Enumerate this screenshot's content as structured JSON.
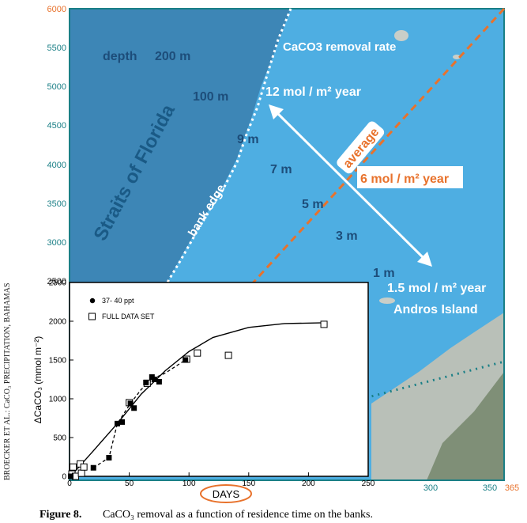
{
  "colors": {
    "ocean_deep": "#3f86b4",
    "ocean_bank": "#4faee0",
    "teal_axis": "#1a7f86",
    "orange": "#e8722c",
    "white": "#ffffff",
    "label_dark": "#1d4d7a",
    "land": "#b7bdb6"
  },
  "map": {
    "depth_labels": [
      "depth",
      "200 m",
      "100 m",
      "9 m",
      "7 m",
      "5 m",
      "3 m",
      "1 m"
    ],
    "region_straits": "Straits of Florida",
    "bank_edge": "bank edge",
    "removal_title": "CaCO3 removal rate",
    "rate_high": "12 mol / m² year",
    "rate_avg_label": "average",
    "rate_avg": "6 mol / m² year",
    "rate_low": "1.5 mol / m² year",
    "island": "Andros Island",
    "left_axis_ticks": [
      "6000",
      "5500",
      "5000",
      "4500",
      "4000",
      "3500",
      "3000",
      "2500"
    ],
    "bottom_axis_ticks": [
      "300",
      "350",
      "365"
    ]
  },
  "side_label": "BROECKER ET AL.: CaCO₃ PRECIPITATION, BAHAMAS",
  "caption": {
    "fig": "Figure 8.",
    "text": "CaCO₃ removal as a function of residence time on the banks."
  },
  "chart_data": {
    "type": "scatter",
    "xlabel": "DAYS",
    "ylabel": "ΔCaCO₃ (mmol m⁻²)",
    "xlim": [
      0,
      250
    ],
    "ylim": [
      0,
      2500
    ],
    "xticks": [
      0,
      50,
      100,
      150,
      200,
      250
    ],
    "yticks": [
      0,
      500,
      1000,
      1500,
      2000,
      2500
    ],
    "legend_position": "top-left",
    "series": [
      {
        "name": "37- 40 ppt",
        "marker": "filled-square",
        "points": [
          [
            1,
            0
          ],
          [
            20,
            110
          ],
          [
            33,
            240
          ],
          [
            40,
            680
          ],
          [
            44,
            700
          ],
          [
            51,
            940
          ],
          [
            54,
            880
          ],
          [
            64,
            1210
          ],
          [
            69,
            1280
          ],
          [
            71,
            1250
          ],
          [
            75,
            1220
          ],
          [
            97,
            1500
          ]
        ]
      },
      {
        "name": "FULL DATA SET",
        "marker": "open-square",
        "points": [
          [
            2,
            30
          ],
          [
            3,
            120
          ],
          [
            5,
            0
          ],
          [
            9,
            160
          ],
          [
            10,
            40
          ],
          [
            12,
            120
          ],
          [
            50,
            950
          ],
          [
            65,
            1200
          ],
          [
            98,
            1510
          ],
          [
            107,
            1590
          ],
          [
            133,
            1560
          ],
          [
            213,
            1960
          ]
        ]
      }
    ],
    "fit_curve": [
      [
        2,
        20
      ],
      [
        20,
        330
      ],
      [
        40,
        680
      ],
      [
        60,
        1060
      ],
      [
        80,
        1360
      ],
      [
        100,
        1610
      ],
      [
        120,
        1790
      ],
      [
        150,
        1920
      ],
      [
        180,
        1970
      ],
      [
        213,
        1980
      ]
    ],
    "dashed_curve": [
      [
        20,
        110
      ],
      [
        33,
        240
      ],
      [
        40,
        680
      ],
      [
        51,
        940
      ],
      [
        60,
        1120
      ],
      [
        70,
        1260
      ],
      [
        80,
        1330
      ],
      [
        97,
        1500
      ]
    ]
  }
}
